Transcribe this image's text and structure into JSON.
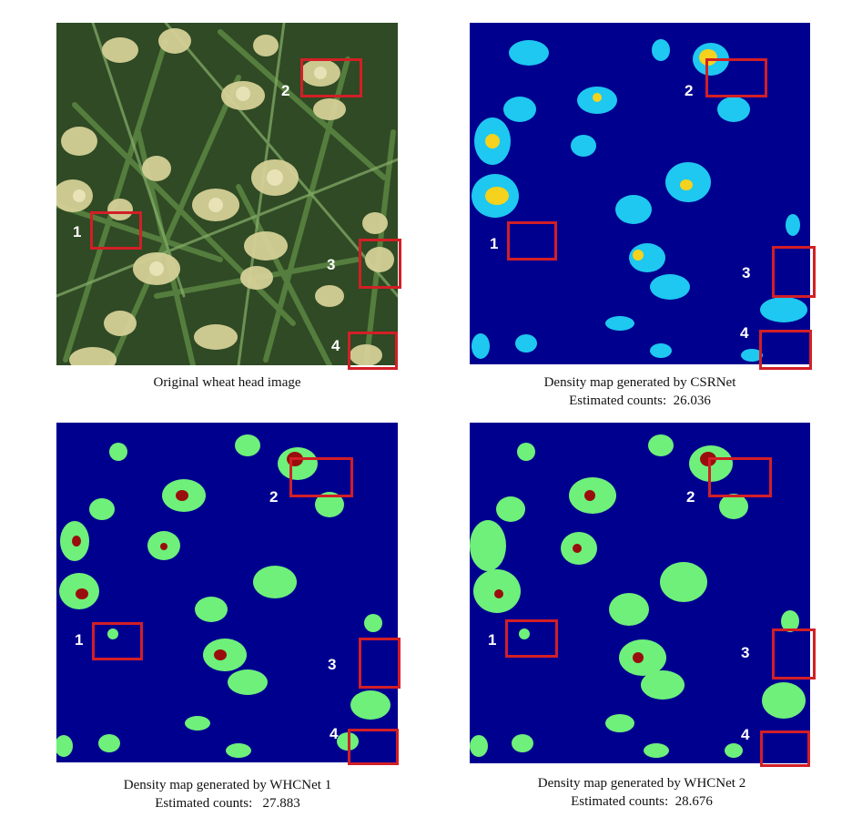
{
  "figure": {
    "panels": [
      {
        "id": "original",
        "caption_lines": [
          "Original wheat head image"
        ],
        "markers": [
          "1",
          "2",
          "3",
          "4"
        ]
      },
      {
        "id": "csrnet",
        "caption_lines": [
          "Density map generated by CSRNet",
          "Estimated counts:  26.036"
        ],
        "markers": [
          "1",
          "2",
          "3",
          "4"
        ]
      },
      {
        "id": "whcnet1",
        "caption_lines": [
          "Density map generated by WHCNet 1",
          "Estimated counts:   27.883"
        ],
        "markers": [
          "1",
          "2",
          "3",
          "4"
        ]
      },
      {
        "id": "whcnet2",
        "caption_lines": [
          "Density map generated by WHCNet 2",
          "Estimated counts:  28.676"
        ],
        "markers": [
          "1",
          "2",
          "3",
          "4"
        ]
      }
    ],
    "colors": {
      "density_background": "#00008f",
      "csrnet_blob": "#1ec8f0",
      "csrnet_hot": "#f5d21e",
      "whcnet_blob": "#6ef07a",
      "whcnet_hot": "#9a0d0d",
      "box": "#d21f26",
      "wheat_leaf": "#3b5a2c",
      "wheat_head": "#d9d39a"
    }
  }
}
